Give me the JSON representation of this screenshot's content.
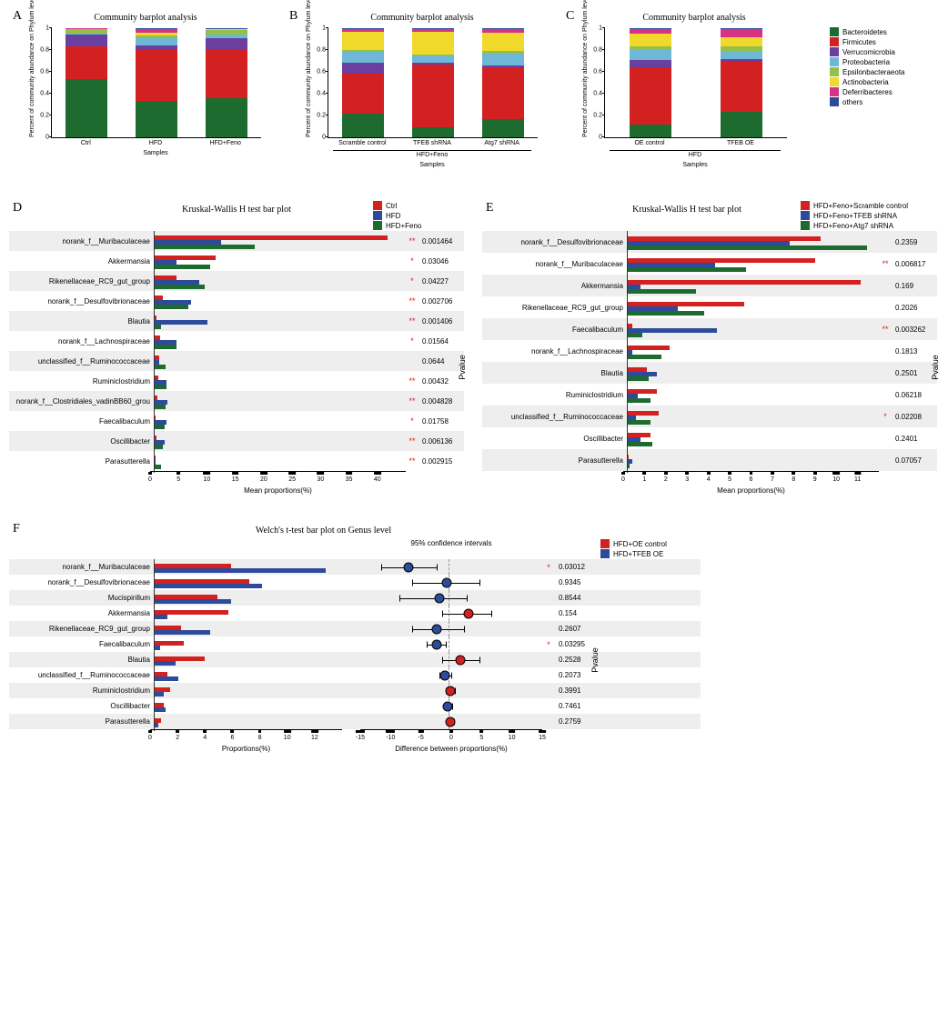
{
  "phylum_colors": {
    "Bacteroidetes": "#1d6b2e",
    "Firmicutes": "#d32020",
    "Verrucomicrobia": "#6b3fa0",
    "Proteobacteria": "#6fb7d6",
    "Epsilonbacteraeota": "#93c048",
    "Actinobacteria": "#f1d92b",
    "Deferribacteres": "#d63384",
    "others": "#2e4b9b"
  },
  "phylum_order": [
    "Bacteroidetes",
    "Firmicutes",
    "Verrucomicrobia",
    "Proteobacteria",
    "Epsilonbacteraeota",
    "Actinobacteria",
    "Deferribacteres",
    "others"
  ],
  "phylum_legend_labels": {
    "Bacteroidetes": "Bacteroidetes",
    "Firmicutes": "Firmicutes",
    "Verrucomicrobia": "Verrucomicrobia",
    "Proteobacteria": "Proteobacteria",
    "Epsilonbacteraeota": "Epsilonbacteraeota",
    "Actinobacteria": "Actinobacteria",
    "Deferribacteres": "Deferribacteres",
    "others": "others"
  },
  "panelA": {
    "label": "A",
    "title": "Community barplot analysis",
    "y_label": "Percent of community abundance on Phylum level",
    "x_label": "Samples",
    "y_ticks": [
      0,
      0.2,
      0.4,
      0.6,
      0.8,
      1
    ],
    "categories": [
      "Ctrl",
      "HFD",
      "HFD+Feno"
    ],
    "stacks": [
      {
        "Bacteroidetes": 0.53,
        "Firmicutes": 0.3,
        "Verrucomicrobia": 0.11,
        "Proteobacteria": 0.01,
        "Epsilonbacteraeota": 0.04,
        "Actinobacteria": 0.005,
        "Deferribacteres": 0.003,
        "others": 0.002
      },
      {
        "Bacteroidetes": 0.33,
        "Firmicutes": 0.47,
        "Verrucomicrobia": 0.04,
        "Proteobacteria": 0.07,
        "Epsilonbacteraeota": 0.02,
        "Actinobacteria": 0.03,
        "Deferribacteres": 0.03,
        "others": 0.01
      },
      {
        "Bacteroidetes": 0.36,
        "Firmicutes": 0.44,
        "Verrucomicrobia": 0.11,
        "Proteobacteria": 0.03,
        "Epsilonbacteraeota": 0.04,
        "Actinobacteria": 0.01,
        "Deferribacteres": 0.005,
        "others": 0.005
      }
    ]
  },
  "panelB": {
    "label": "B",
    "title": "Community barplot analysis",
    "y_label": "Percent of community abundance on Phylum level",
    "x_label": "Samples",
    "y_ticks": [
      0,
      0.2,
      0.4,
      0.6,
      0.8,
      1
    ],
    "categories": [
      "Scramble control",
      "TFEB shRNA",
      "Atg7 shRNA"
    ],
    "sub_label": "HFD+Feno",
    "stacks": [
      {
        "Bacteroidetes": 0.22,
        "Firmicutes": 0.36,
        "Verrucomicrobia": 0.1,
        "Proteobacteria": 0.1,
        "Epsilonbacteraeota": 0.02,
        "Actinobacteria": 0.17,
        "Deferribacteres": 0.02,
        "others": 0.01
      },
      {
        "Bacteroidetes": 0.09,
        "Firmicutes": 0.58,
        "Verrucomicrobia": 0.01,
        "Proteobacteria": 0.07,
        "Epsilonbacteraeota": 0.01,
        "Actinobacteria": 0.21,
        "Deferribacteres": 0.02,
        "others": 0.01
      },
      {
        "Bacteroidetes": 0.17,
        "Firmicutes": 0.47,
        "Verrucomicrobia": 0.02,
        "Proteobacteria": 0.11,
        "Epsilonbacteraeota": 0.02,
        "Actinobacteria": 0.17,
        "Deferribacteres": 0.03,
        "others": 0.01
      }
    ]
  },
  "panelC": {
    "label": "C",
    "title": "Community barplot analysis",
    "y_label": "Percent of community abundance on Phylum level",
    "x_label": "Samples",
    "y_ticks": [
      0,
      0.2,
      0.4,
      0.6,
      0.8,
      1
    ],
    "categories": [
      "OE control",
      "TFEB OE"
    ],
    "sub_label": "HFD",
    "stacks": [
      {
        "Bacteroidetes": 0.12,
        "Firmicutes": 0.52,
        "Verrucomicrobia": 0.07,
        "Proteobacteria": 0.09,
        "Epsilonbacteraeota": 0.03,
        "Actinobacteria": 0.12,
        "Deferribacteres": 0.04,
        "others": 0.01
      },
      {
        "Bacteroidetes": 0.23,
        "Firmicutes": 0.47,
        "Verrucomicrobia": 0.02,
        "Proteobacteria": 0.06,
        "Epsilonbacteraeota": 0.05,
        "Actinobacteria": 0.09,
        "Deferribacteres": 0.07,
        "others": 0.01
      }
    ]
  },
  "panelD": {
    "label": "D",
    "title": "Kruskal-Wallis H test bar plot",
    "x_label": "Mean proportions(%)",
    "p_label": "Pvalue",
    "x_max": 45,
    "x_ticks": [
      0,
      5,
      10,
      15,
      20,
      25,
      30,
      35,
      40
    ],
    "groups": [
      {
        "name": "Ctrl",
        "color": "#d32020"
      },
      {
        "name": "HFD",
        "color": "#2e4b9b"
      },
      {
        "name": "HFD+Feno",
        "color": "#1d6b2e"
      }
    ],
    "rows": [
      {
        "name": "norank_f__Muribaculaceae",
        "vals": [
          42,
          12,
          18
        ],
        "sig": "**",
        "p": "0.001464"
      },
      {
        "name": "Akkermansia",
        "vals": [
          11,
          4,
          10
        ],
        "sig": "*",
        "p": "0.03046"
      },
      {
        "name": "Rikenellaceae_RC9_gut_group",
        "vals": [
          4,
          8,
          9
        ],
        "sig": "*",
        "p": "0.04227"
      },
      {
        "name": "norank_f__Desulfovibrionaceae",
        "vals": [
          1.5,
          6.5,
          6
        ],
        "sig": "**",
        "p": "0.002706"
      },
      {
        "name": "Blautia",
        "vals": [
          0.3,
          9.5,
          1.2
        ],
        "sig": "**",
        "p": "0.001406"
      },
      {
        "name": "norank_f__Lachnospiraceae",
        "vals": [
          1,
          4,
          4
        ],
        "sig": "*",
        "p": "0.01564"
      },
      {
        "name": "unclassified_f__Ruminococcaceae",
        "vals": [
          0.8,
          0.8,
          2
        ],
        "sig": "",
        "p": "0.0644"
      },
      {
        "name": "Ruminiclostridium",
        "vals": [
          0.6,
          2.2,
          2.2
        ],
        "sig": "**",
        "p": "0.00432"
      },
      {
        "name": "norank_f__Clostridiales_vadinBB60_grou",
        "vals": [
          0.5,
          2.3,
          2
        ],
        "sig": "**",
        "p": "0.004828"
      },
      {
        "name": "Faecalibaculum",
        "vals": [
          0.1,
          2.2,
          1.8
        ],
        "sig": "*",
        "p": "0.01758"
      },
      {
        "name": "Oscillibacter",
        "vals": [
          0.3,
          1.8,
          1.4
        ],
        "sig": "**",
        "p": "0.006136"
      },
      {
        "name": "Parasutterella",
        "vals": [
          0.1,
          0.2,
          1.2
        ],
        "sig": "**",
        "p": "0.002915"
      }
    ]
  },
  "panelE": {
    "label": "E",
    "title": "Kruskal-Wallis H test bar plot",
    "x_label": "Mean proportions(%)",
    "p_label": "Pvalue",
    "x_max": 12,
    "x_ticks": [
      0,
      1,
      2,
      3,
      4,
      5,
      6,
      7,
      8,
      9,
      10,
      11
    ],
    "groups": [
      {
        "name": "HFD+Feno+Scramble control",
        "color": "#d32020"
      },
      {
        "name": "HFD+Feno+TFEB shRNA",
        "color": "#2e4b9b"
      },
      {
        "name": "HFD+Feno+Atg7 shRNA",
        "color": "#1d6b2e"
      }
    ],
    "rows": [
      {
        "name": "norank_f__Desulfovibrionaceae",
        "vals": [
          9.3,
          7.8,
          11.5
        ],
        "sig": "",
        "p": "0.2359"
      },
      {
        "name": "norank_f__Muribaculaceae",
        "vals": [
          9.0,
          4.2,
          5.7
        ],
        "sig": "**",
        "p": "0.006817"
      },
      {
        "name": "Akkermansia",
        "vals": [
          11.2,
          0.6,
          3.3
        ],
        "sig": "",
        "p": "0.169"
      },
      {
        "name": "Rikenellaceae_RC9_gut_group",
        "vals": [
          5.6,
          2.4,
          3.7
        ],
        "sig": "",
        "p": "0.2026"
      },
      {
        "name": "Faecalibaculum",
        "vals": [
          0.2,
          4.3,
          0.7
        ],
        "sig": "**",
        "p": "0.003262"
      },
      {
        "name": "norank_f__Lachnospiraceae",
        "vals": [
          2.0,
          0.2,
          1.6
        ],
        "sig": "",
        "p": "0.1813"
      },
      {
        "name": "Blautia",
        "vals": [
          0.9,
          1.4,
          1.0
        ],
        "sig": "",
        "p": "0.2501"
      },
      {
        "name": "Ruminiclostridium",
        "vals": [
          1.4,
          0.5,
          1.1
        ],
        "sig": "",
        "p": "0.06218"
      },
      {
        "name": "unclassified_f__Ruminococcaceae",
        "vals": [
          1.5,
          0.4,
          1.1
        ],
        "sig": "*",
        "p": "0.02208"
      },
      {
        "name": "Oscillibacter",
        "vals": [
          1.1,
          0.6,
          1.2
        ],
        "sig": "",
        "p": "0.2401"
      },
      {
        "name": "Parasutterella",
        "vals": [
          0.05,
          0.2,
          0.1
        ],
        "sig": "",
        "p": "0.07057"
      }
    ]
  },
  "panelF": {
    "label": "F",
    "title": "Welch's t-test bar plot on Genus level",
    "ci_title": "95% confidence intervals",
    "x_label_bars": "Proportions(%)",
    "x_label_ci": "Difference between proportions(%)",
    "p_label": "Pvalue",
    "bar_xmax": 14,
    "bar_xticks": [
      0,
      2,
      4,
      6,
      8,
      10,
      12
    ],
    "ci_xmin": -15,
    "ci_xmax": 15,
    "ci_xticks": [
      -15,
      -10,
      -5,
      0,
      5,
      10,
      15
    ],
    "groups": [
      {
        "name": "HFD+OE control",
        "color": "#d32020"
      },
      {
        "name": "HFD+TFEB OE",
        "color": "#2e4b9b"
      }
    ],
    "rows": [
      {
        "name": "norank_f__Muribaculaceae",
        "vals": [
          5.8,
          13.0
        ],
        "mean": -6.5,
        "lo": -11,
        "hi": -2,
        "color": "#2e4b9b",
        "sig": "*",
        "p": "0.03012"
      },
      {
        "name": "norank_f__Desulfovibrionaceae",
        "vals": [
          7.2,
          8.2
        ],
        "mean": -0.3,
        "lo": -6,
        "hi": 5,
        "color": "#2e4b9b",
        "sig": "",
        "p": "0.9345"
      },
      {
        "name": "Mucispirillum",
        "vals": [
          4.8,
          5.8
        ],
        "mean": -1.5,
        "lo": -8,
        "hi": 3,
        "color": "#2e4b9b",
        "sig": "",
        "p": "0.8544"
      },
      {
        "name": "Akkermansia",
        "vals": [
          5.6,
          1.0
        ],
        "mean": 3.2,
        "lo": -1,
        "hi": 7,
        "color": "#d32020",
        "sig": "",
        "p": "0.154"
      },
      {
        "name": "Rikenellaceae_RC9_gut_group",
        "vals": [
          2.0,
          4.2
        ],
        "mean": -2.0,
        "lo": -6,
        "hi": 2.5,
        "color": "#2e4b9b",
        "sig": "",
        "p": "0.2607"
      },
      {
        "name": "Faecalibaculum",
        "vals": [
          2.2,
          0.4
        ],
        "mean": -2.0,
        "lo": -3.5,
        "hi": -0.4,
        "color": "#2e4b9b",
        "sig": "*",
        "p": "0.03295"
      },
      {
        "name": "Blautia",
        "vals": [
          3.8,
          1.6
        ],
        "mean": 2.0,
        "lo": -1,
        "hi": 5,
        "color": "#d32020",
        "sig": "",
        "p": "0.2528"
      },
      {
        "name": "unclassified_f__Ruminococcaceae",
        "vals": [
          1.0,
          1.8
        ],
        "mean": -0.6,
        "lo": -1.5,
        "hi": 0.4,
        "color": "#2e4b9b",
        "sig": "",
        "p": "0.2073"
      },
      {
        "name": "Ruminiclostridium",
        "vals": [
          1.2,
          0.7
        ],
        "mean": 0.3,
        "lo": -0.5,
        "hi": 1.1,
        "color": "#d32020",
        "sig": "",
        "p": "0.3991"
      },
      {
        "name": "Oscillibacter",
        "vals": [
          0.7,
          0.8
        ],
        "mean": -0.1,
        "lo": -0.8,
        "hi": 0.6,
        "color": "#2e4b9b",
        "sig": "",
        "p": "0.7461"
      },
      {
        "name": "Parasutterella",
        "vals": [
          0.5,
          0.3
        ],
        "mean": 0.3,
        "lo": -0.3,
        "hi": 0.9,
        "color": "#d32020",
        "sig": "",
        "p": "0.2759"
      }
    ]
  }
}
